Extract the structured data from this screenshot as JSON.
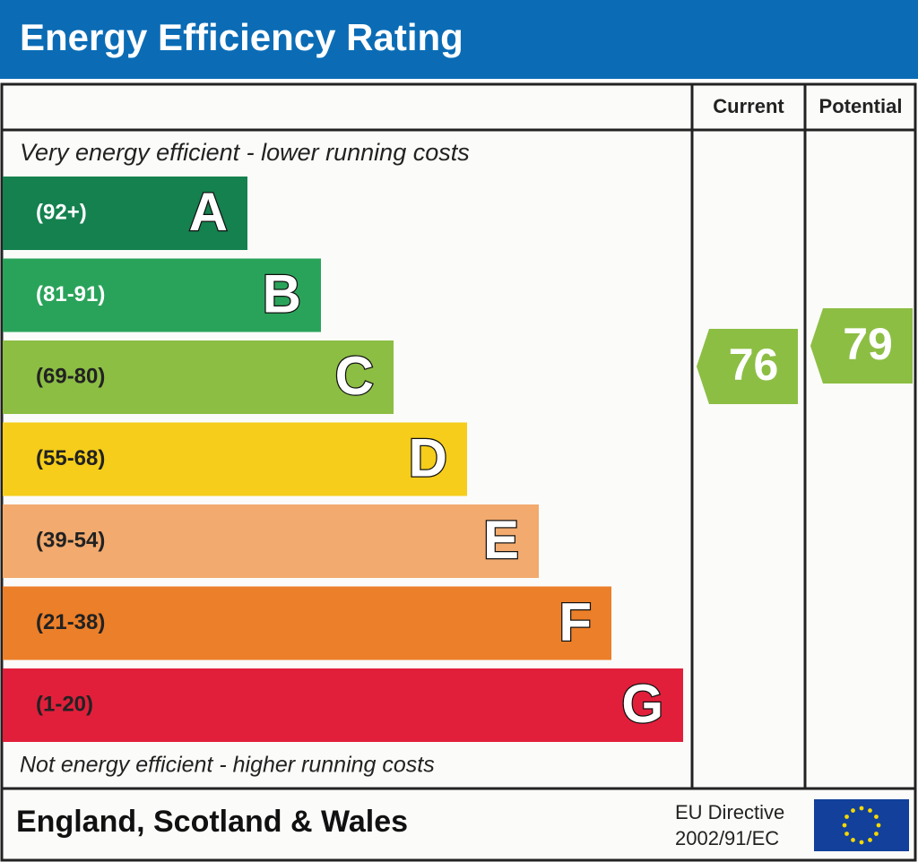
{
  "title": "Energy Efficiency Rating",
  "columns": [
    "Current",
    "Potential"
  ],
  "top_note": "Very energy efficient - lower running costs",
  "bottom_note": "Not energy efficient - higher running costs",
  "bands": [
    {
      "range": "(92+)",
      "letter": "A",
      "color": "#14814f"
    },
    {
      "range": "(81-91)",
      "letter": "B",
      "color": "#2aa35a"
    },
    {
      "range": "(69-80)",
      "letter": "C",
      "color": "#8cbe44"
    },
    {
      "range": "(55-68)",
      "letter": "D",
      "color": "#f5cd1a"
    },
    {
      "range": "(39-54)",
      "letter": "E",
      "color": "#f2aa6e"
    },
    {
      "range": "(21-38)",
      "letter": "F",
      "color": "#ec7f29"
    },
    {
      "range": "(1-20)",
      "letter": "G",
      "color": "#e11f3b"
    }
  ],
  "current": {
    "value": 76,
    "color": "#8cbe44"
  },
  "potential": {
    "value": 79,
    "color": "#8cbe44"
  },
  "footer": {
    "region": "England, Scotland & Wales",
    "directive": [
      "EU Directive",
      "2002/91/EC"
    ]
  }
}
